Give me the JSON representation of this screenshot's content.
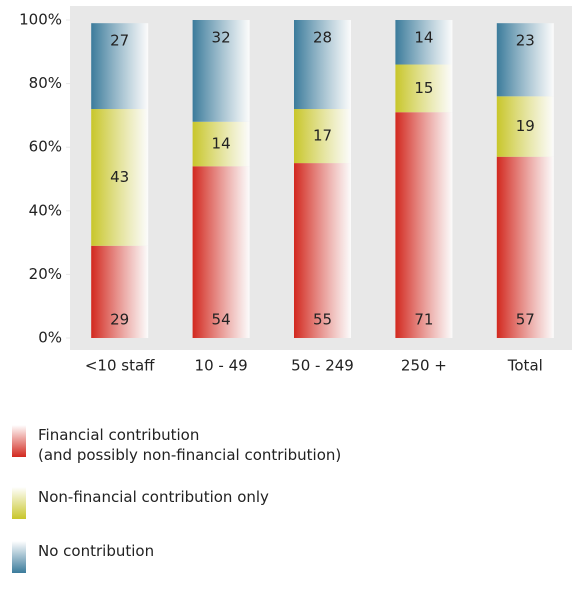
{
  "chart_data": {
    "type": "stacked_bar",
    "categories": [
      "<10 staff",
      "10 - 49",
      "50 - 249",
      "250 +",
      "Total"
    ],
    "series": [
      {
        "name": "Financial contribution\n(and possibly non-financial contribution)",
        "color": "#d2281e",
        "values": [
          29,
          54,
          55,
          71,
          57
        ]
      },
      {
        "name": "Non-financial contribution only",
        "color": "#c8c62a",
        "values": [
          43,
          14,
          17,
          15,
          19
        ]
      },
      {
        "name": "No contribution",
        "color": "#3b7b9b",
        "values": [
          27,
          32,
          28,
          14,
          23
        ]
      }
    ],
    "ylim": [
      0,
      100
    ],
    "yticks": [
      {
        "value": 0,
        "label": "0%"
      },
      {
        "value": 20,
        "label": "20%"
      },
      {
        "value": 40,
        "label": "40%"
      },
      {
        "value": 60,
        "label": "60%"
      },
      {
        "value": 80,
        "label": "80%"
      },
      {
        "value": 100,
        "label": "100%"
      }
    ]
  }
}
